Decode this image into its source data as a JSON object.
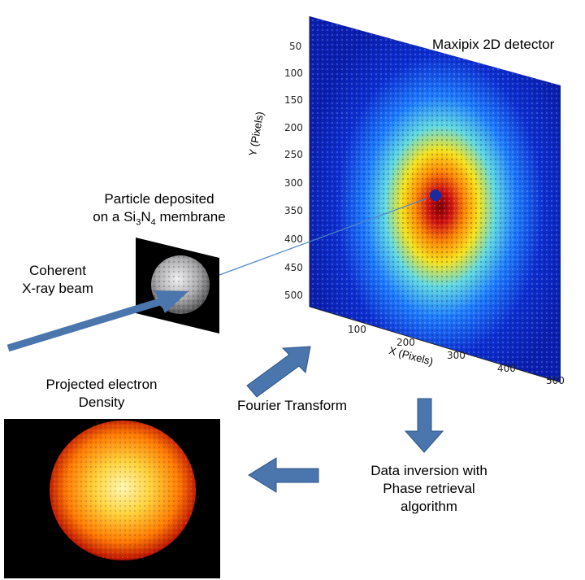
{
  "detector": {
    "title": "Maxipix 2D detector",
    "y_axis_label": "Y (Pixels)",
    "x_axis_label": "X (Pixels)",
    "y_ticks": [
      "50",
      "100",
      "150",
      "200",
      "250",
      "300",
      "350",
      "400",
      "450",
      "500"
    ],
    "x_ticks": [
      "100",
      "200",
      "300",
      "400",
      "500"
    ]
  },
  "sample": {
    "label_line1": "Particle deposited",
    "label_line2_prefix": "on a Si",
    "sub1": "3",
    "label_line2_mid": "N",
    "sub2": "4",
    "label_line2_suffix": " membrane"
  },
  "beam": {
    "line1": "Coherent",
    "line2": "X-ray beam"
  },
  "steps": {
    "fourier": "Fourier Transform",
    "inversion_line1": "Data inversion with",
    "inversion_line2": "Phase retrieval",
    "inversion_line3": "algorithm"
  },
  "result": {
    "line1": "Projected electron",
    "line2": "Density"
  },
  "colors": {
    "arrow": "#4a76ad",
    "arrow_edge": "#2c5585",
    "detector_bg": "#0a1fb8",
    "beam_line": "#4f86c6"
  }
}
